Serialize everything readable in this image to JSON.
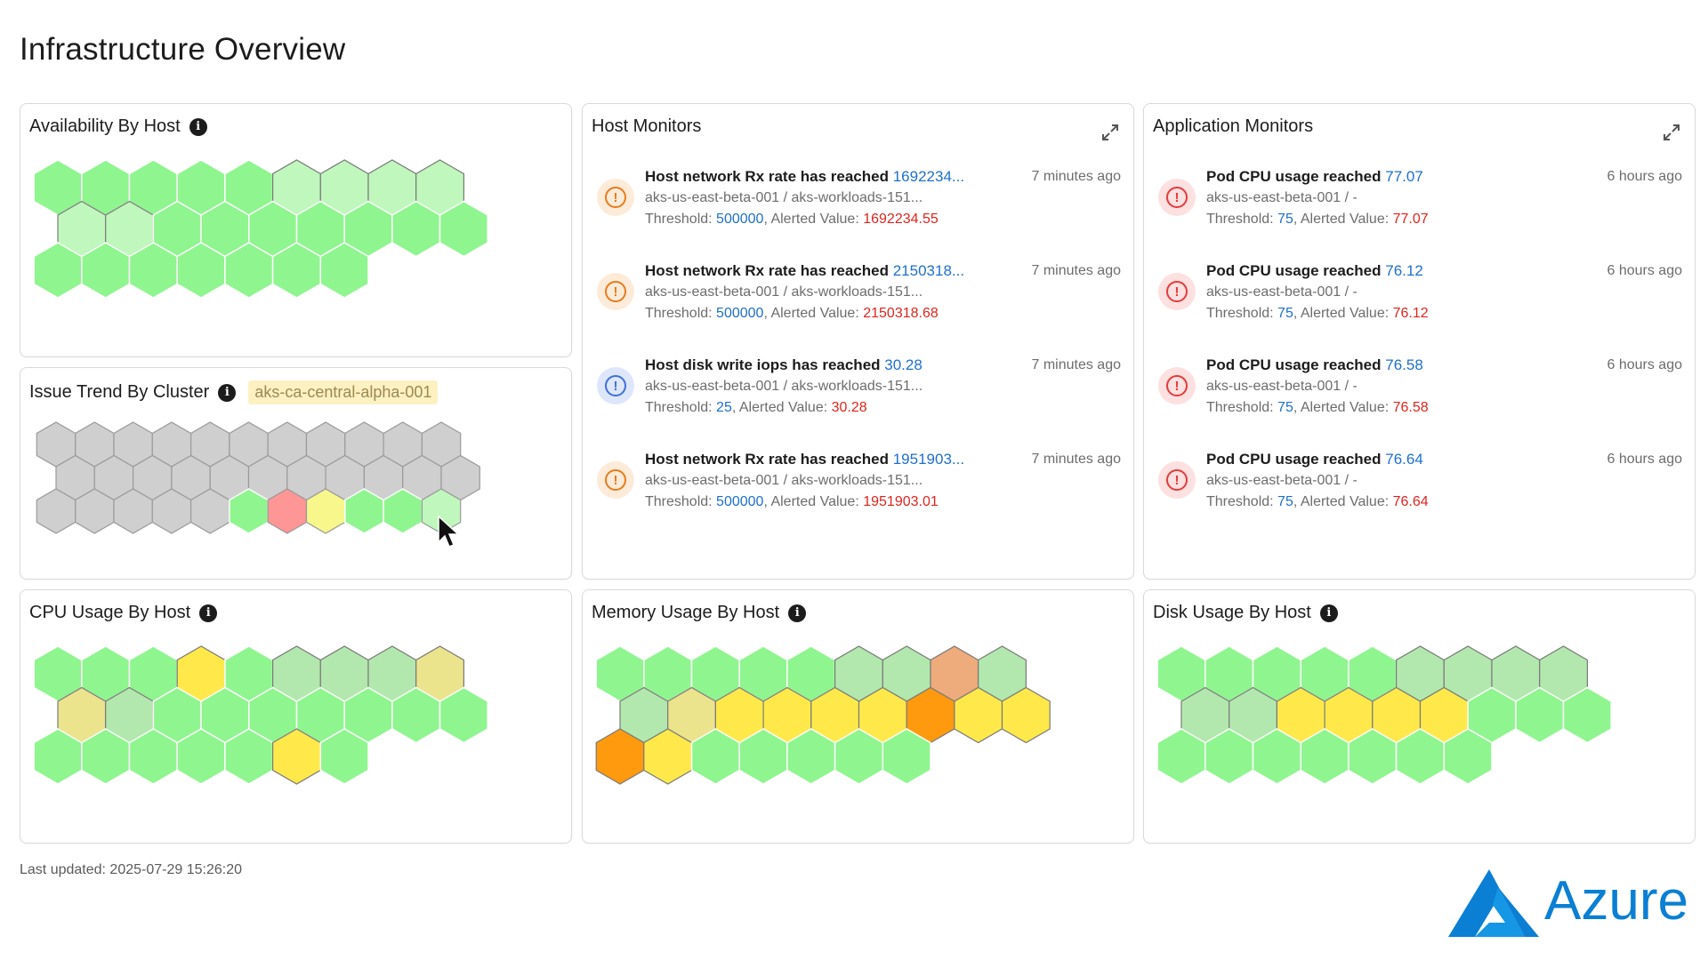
{
  "page": {
    "title": "Infrastructure Overview",
    "last_updated": "Last updated: 2025-07-29 15:26:20",
    "brand": "Azure"
  },
  "colors": {
    "green": "#8ff58f",
    "pale_green": "#bff7bc",
    "mid_green": "#b2e8ad",
    "gray": "#cfcfcf",
    "red": "#ff9696",
    "yellow": "#ffe94a",
    "pale_yellow": "#f7f78c",
    "khaki": "#ece38d",
    "orange": "#ff9a0e",
    "salmon": "#eeab7b",
    "accent_blue": "#1e6fd0",
    "alert_red": "#e0241d"
  },
  "panels": {
    "availability": {
      "title": "Availability By Host",
      "rows": [
        [
          "green",
          "green",
          "green",
          "green",
          "green",
          "pale_green",
          "pale_green",
          "pale_green",
          "pale_green"
        ],
        [
          "pale_green",
          "pale_green",
          "green",
          "green",
          "green",
          "green",
          "green",
          "green",
          "green"
        ],
        [
          "green",
          "green",
          "green",
          "green",
          "green",
          "green",
          "green"
        ]
      ]
    },
    "issue_trend": {
      "title": "Issue Trend By Cluster",
      "tag": "aks-ca-central-alpha-001",
      "rows": [
        [
          "gray",
          "gray",
          "gray",
          "gray",
          "gray",
          "gray",
          "gray",
          "gray",
          "gray",
          "gray",
          "gray"
        ],
        [
          "gray",
          "gray",
          "gray",
          "gray",
          "gray",
          "gray",
          "gray",
          "gray",
          "gray",
          "gray",
          "gray"
        ],
        [
          "gray",
          "gray",
          "gray",
          "gray",
          "gray",
          "green",
          "red",
          "pale_yellow",
          "green",
          "green",
          "pale_green"
        ]
      ]
    },
    "cpu": {
      "title": "CPU Usage By Host",
      "rows": [
        [
          "green",
          "green",
          "green",
          "yellow",
          "green",
          "mid_green",
          "mid_green",
          "mid_green",
          "khaki"
        ],
        [
          "khaki",
          "mid_green",
          "green",
          "green",
          "green",
          "green",
          "green",
          "green",
          "green"
        ],
        [
          "green",
          "green",
          "green",
          "green",
          "green",
          "yellow",
          "green"
        ]
      ]
    },
    "memory": {
      "title": "Memory Usage By Host",
      "rows": [
        [
          "green",
          "green",
          "green",
          "green",
          "green",
          "mid_green",
          "mid_green",
          "salmon",
          "mid_green"
        ],
        [
          "mid_green",
          "khaki",
          "yellow",
          "yellow",
          "yellow",
          "yellow",
          "orange",
          "yellow",
          "yellow"
        ],
        [
          "orange",
          "yellow",
          "green",
          "green",
          "green",
          "green",
          "green"
        ]
      ]
    },
    "disk": {
      "title": "Disk Usage By Host",
      "rows": [
        [
          "green",
          "green",
          "green",
          "green",
          "green",
          "mid_green",
          "mid_green",
          "mid_green",
          "mid_green"
        ],
        [
          "mid_green",
          "mid_green",
          "yellow",
          "yellow",
          "yellow",
          "yellow",
          "green",
          "green",
          "green"
        ],
        [
          "green",
          "green",
          "green",
          "green",
          "green",
          "green",
          "green"
        ]
      ]
    },
    "host_monitors": {
      "title": "Host Monitors",
      "alerts": [
        {
          "severity": "warning",
          "title": "Host network Rx rate has reached ",
          "value": "1692234...",
          "time": "7 minutes ago",
          "resource": "aks-us-east-beta-001 / aks-workloads-151...",
          "threshold_label": "Threshold: ",
          "threshold": "500000",
          "alerted_label": ", Alerted Value: ",
          "alerted": "1692234.55"
        },
        {
          "severity": "warning",
          "title": "Host network Rx rate has reached ",
          "value": "2150318...",
          "time": "7 minutes ago",
          "resource": "aks-us-east-beta-001 / aks-workloads-151...",
          "threshold_label": "Threshold: ",
          "threshold": "500000",
          "alerted_label": ", Alerted Value: ",
          "alerted": "2150318.68"
        },
        {
          "severity": "info",
          "title": "Host disk write iops has reached ",
          "value": "30.28",
          "time": "7 minutes ago",
          "resource": "aks-us-east-beta-001 / aks-workloads-151...",
          "threshold_label": "Threshold: ",
          "threshold": "25",
          "alerted_label": ", Alerted Value: ",
          "alerted": "30.28"
        },
        {
          "severity": "warning",
          "title": "Host network Rx rate has reached ",
          "value": "1951903...",
          "time": "7 minutes ago",
          "resource": "aks-us-east-beta-001 / aks-workloads-151...",
          "threshold_label": "Threshold: ",
          "threshold": "500000",
          "alerted_label": ", Alerted Value: ",
          "alerted": "1951903.01"
        }
      ]
    },
    "app_monitors": {
      "title": "Application Monitors",
      "alerts": [
        {
          "severity": "critical",
          "title": "Pod CPU usage reached ",
          "value": "77.07",
          "time": "6 hours ago",
          "resource": "aks-us-east-beta-001 / -",
          "threshold_label": "Threshold: ",
          "threshold": "75",
          "alerted_label": ", Alerted Value: ",
          "alerted": "77.07"
        },
        {
          "severity": "critical",
          "title": "Pod CPU usage reached ",
          "value": "76.12",
          "time": "6 hours ago",
          "resource": "aks-us-east-beta-001 / -",
          "threshold_label": "Threshold: ",
          "threshold": "75",
          "alerted_label": ", Alerted Value: ",
          "alerted": "76.12"
        },
        {
          "severity": "critical",
          "title": "Pod CPU usage reached ",
          "value": "76.58",
          "time": "6 hours ago",
          "resource": "aks-us-east-beta-001 / -",
          "threshold_label": "Threshold: ",
          "threshold": "75",
          "alerted_label": ", Alerted Value: ",
          "alerted": "76.58"
        },
        {
          "severity": "critical",
          "title": "Pod CPU usage reached ",
          "value": "76.64",
          "time": "6 hours ago",
          "resource": "aks-us-east-beta-001 / -",
          "threshold_label": "Threshold: ",
          "threshold": "75",
          "alerted_label": ", Alerted Value: ",
          "alerted": "76.64"
        }
      ]
    }
  },
  "icons": {
    "info": "info-icon",
    "expand": "expand-icon",
    "warning": "exclamation-circle-icon",
    "critical": "exclamation-circle-icon",
    "information": "exclamation-circle-icon"
  }
}
